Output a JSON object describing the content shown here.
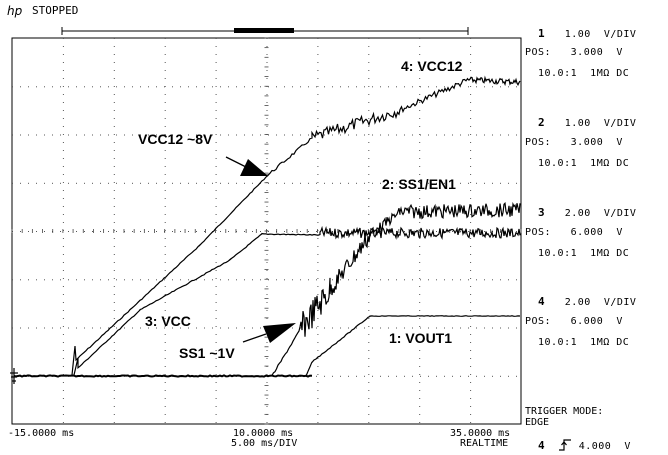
{
  "header": {
    "logo": "hp",
    "status": "STOPPED"
  },
  "traces": {
    "vcc12_label": "4: VCC12",
    "ss1en1_label": "2: SS1/EN1",
    "vcc_label": "3: VCC",
    "vout1_label": "1: VOUT1",
    "ann_vcc12": "VCC12 ~8V",
    "ann_ss1": "SS1 ~1V"
  },
  "time_axis": {
    "left": "-15.0000 ms",
    "center": "10.0000 ms",
    "center_sub": "5.00 ms/DIV",
    "right": "35.0000 ms",
    "right_sub": "REALTIME"
  },
  "channels": [
    {
      "num": "1",
      "vdiv": "1.00",
      "unit": "V/DIV",
      "pos_label": "POS:",
      "pos": "3.000",
      "pos_unit": "V",
      "probe": "10.0:1",
      "imp": "1MΩ",
      "coupling": "DC"
    },
    {
      "num": "2",
      "vdiv": "1.00",
      "unit": "V/DIV",
      "pos_label": "POS:",
      "pos": "3.000",
      "pos_unit": "V",
      "probe": "10.0:1",
      "imp": "1MΩ",
      "coupling": "DC"
    },
    {
      "num": "3",
      "vdiv": "2.00",
      "unit": "V/DIV",
      "pos_label": "POS:",
      "pos": "6.000",
      "pos_unit": "V",
      "probe": "10.0:1",
      "imp": "1MΩ",
      "coupling": "DC"
    },
    {
      "num": "4",
      "vdiv": "2.00",
      "unit": "V/DIV",
      "pos_label": "POS:",
      "pos": "6.000",
      "pos_unit": "V",
      "probe": "10.0:1",
      "imp": "1MΩ",
      "coupling": "DC"
    }
  ],
  "trigger": {
    "mode_label": "TRIGGER MODE:",
    "mode": "EDGE",
    "channel": "4",
    "level": "4.000",
    "unit": "V"
  },
  "icons": {
    "trigger_edge": "rising-edge-icon",
    "ground_marker": "ground-marker-icon"
  }
}
